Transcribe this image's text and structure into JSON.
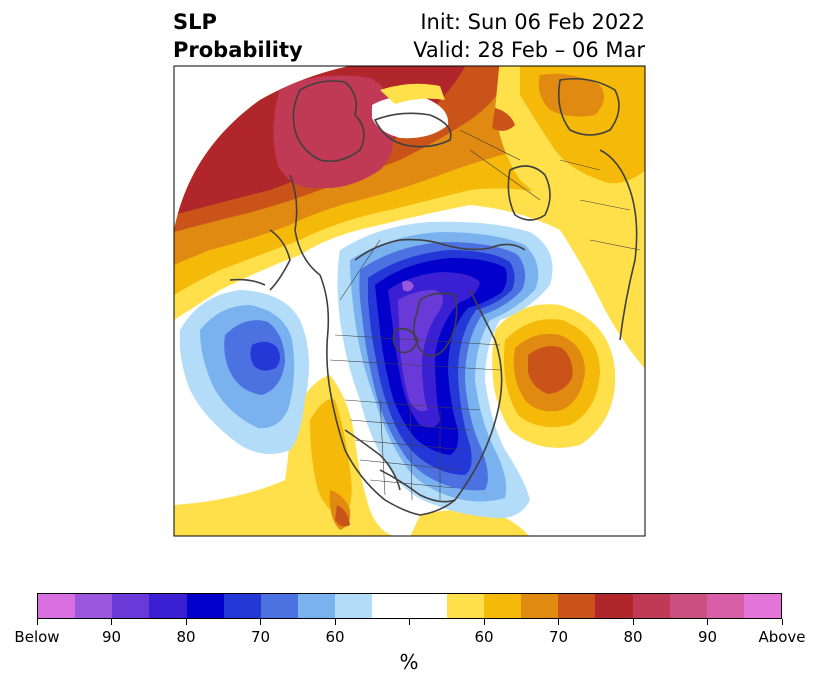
{
  "title": {
    "left_line1": "SLP",
    "left_line2": "Probability",
    "right_line1": "Init: Sun 06 Feb 2022",
    "right_line2": "Valid: 28 Feb – 06 Mar"
  },
  "colorbar": {
    "unit": "%",
    "colors": [
      "#d86fe0",
      "#9b58de",
      "#6a3ad8",
      "#3a1fd3",
      "#0300cb",
      "#2438d8",
      "#4c72e2",
      "#7ab2f0",
      "#b2dcf8",
      "#ffffff",
      "#ffffff",
      "#ffe04b",
      "#f5b90a",
      "#e08a12",
      "#c95319",
      "#b0262a",
      "#c03a55",
      "#cb4f7f",
      "#d95ea8",
      "#e475d8"
    ],
    "tick_labels": [
      "Below",
      "90",
      "80",
      "70",
      "60",
      "",
      "60",
      "70",
      "80",
      "90",
      "Above"
    ]
  },
  "map": {
    "projection": "polar stereographic, North America / North Atlantic",
    "below_normal_color": "#0300cb",
    "above_normal_color": "#b0262a"
  }
}
